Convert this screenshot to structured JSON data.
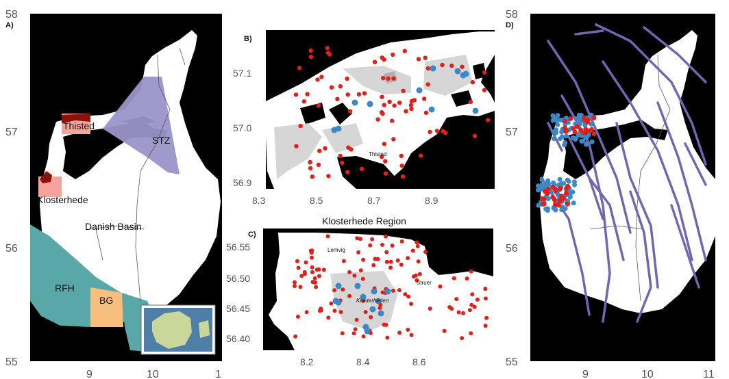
{
  "panels": {
    "a": {
      "letter": "A)",
      "y_ticks": [
        "58",
        "57",
        "56",
        "55"
      ],
      "x_ticks": [
        "9",
        "10",
        "1"
      ],
      "regions": {
        "thisted": "Thisted",
        "klosterhede": "Klosterhede",
        "stz": "STZ",
        "danish_basin": "Danish Basin",
        "rfh": "RFH",
        "bg": "BG"
      }
    },
    "b": {
      "letter": "B)",
      "y_ticks": [
        "57.1",
        "57.0",
        "56.9"
      ],
      "x_ticks": [
        "8.3",
        "8.5",
        "8.7",
        "8.9"
      ],
      "town": "Thisted"
    },
    "c": {
      "letter": "C)",
      "title": "Klosterhede Region",
      "y_ticks": [
        "56.55",
        "56.50",
        "56.45",
        "56.40"
      ],
      "x_ticks": [
        "8.2",
        "8.4",
        "8.6"
      ],
      "towns": {
        "lemvig": "Lemvig",
        "struer": "Struer",
        "klosterhede": "Klosterheden"
      }
    },
    "d": {
      "letter": "D)",
      "y_ticks": [
        "58",
        "57",
        "56",
        "55"
      ],
      "x_ticks": [
        "9",
        "10",
        "11"
      ]
    }
  },
  "colors": {
    "land": "#ffffff",
    "sea": "#000000",
    "stz": "#9b95c9",
    "rfh": "#5aa7a7",
    "bg": "#f6bf7e",
    "thisted_box": "#f6a39c",
    "dark_red": "#8b1208",
    "red_points": "#e0201b",
    "blue_points": "#3c87c5",
    "faults": "#6e68b0"
  }
}
